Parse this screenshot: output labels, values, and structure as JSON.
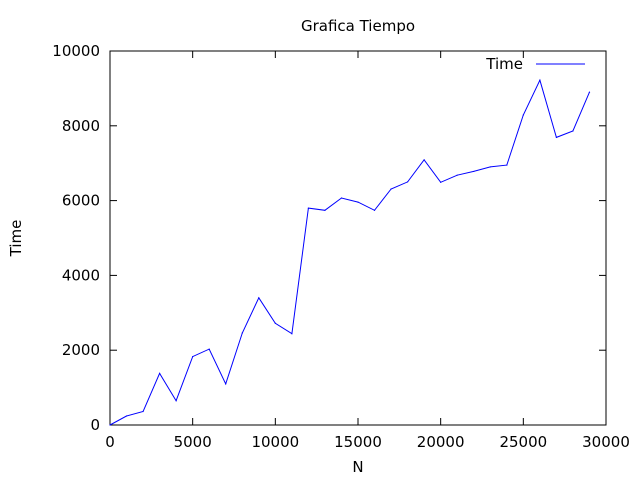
{
  "chart_data": {
    "type": "line",
    "title": "Grafica Tiempo",
    "xlabel": "N",
    "ylabel": "Time",
    "xlim": [
      0,
      30000
    ],
    "ylim": [
      0,
      10000
    ],
    "xticks": [
      0,
      5000,
      10000,
      15000,
      20000,
      25000,
      30000
    ],
    "yticks": [
      0,
      2000,
      4000,
      6000,
      8000,
      10000
    ],
    "grid": false,
    "legend_position": "top-right",
    "series": [
      {
        "name": "Time",
        "color": "#0000ff",
        "x": [
          0,
          1000,
          2000,
          3000,
          4000,
          5000,
          6000,
          7000,
          8000,
          9000,
          10000,
          11000,
          12000,
          13000,
          14000,
          15000,
          16000,
          17000,
          18000,
          19000,
          20000,
          21000,
          22000,
          23000,
          24000,
          25000,
          26000,
          27000,
          28000,
          29000
        ],
        "y": [
          0,
          240,
          360,
          1380,
          650,
          1830,
          2030,
          1100,
          2460,
          3400,
          2720,
          2440,
          5800,
          5740,
          6070,
          5960,
          5740,
          6310,
          6500,
          7090,
          6490,
          6680,
          6780,
          6900,
          6950,
          8290,
          9220,
          7690,
          7860,
          8900
        ]
      }
    ]
  }
}
